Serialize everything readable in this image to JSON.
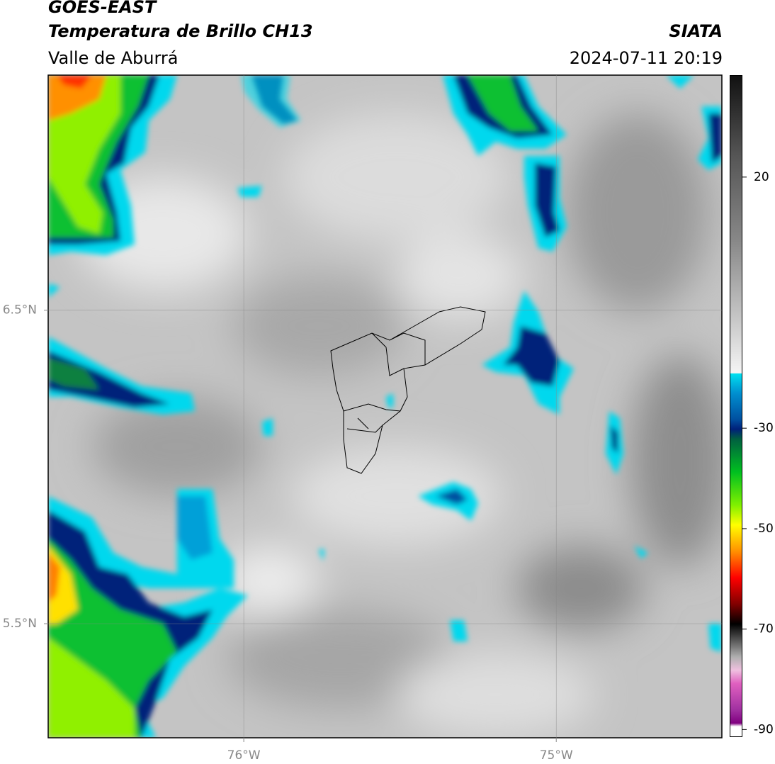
{
  "header": {
    "satellite": "GOES-EAST",
    "product": "Temperatura de Brillo CH13",
    "region": "Valle de Aburrá",
    "source": "SIATA",
    "datetime": "2024-07-11 20:19"
  },
  "map": {
    "xlim": [
      -76.626,
      -74.47
    ],
    "ylim": [
      5.136,
      7.25
    ],
    "xticks": [
      {
        "value": -76,
        "label": "76°W"
      },
      {
        "value": -75,
        "label": "75°W"
      }
    ],
    "yticks": [
      {
        "value": 6.5,
        "label": "6.5°N"
      },
      {
        "value": 5.5,
        "label": "5.5°N"
      }
    ],
    "grid": true
  },
  "colorbar": {
    "lim": [
      -91.5,
      40.3
    ],
    "ticks": [
      20,
      -30,
      -50,
      -70,
      -90
    ]
  }
}
